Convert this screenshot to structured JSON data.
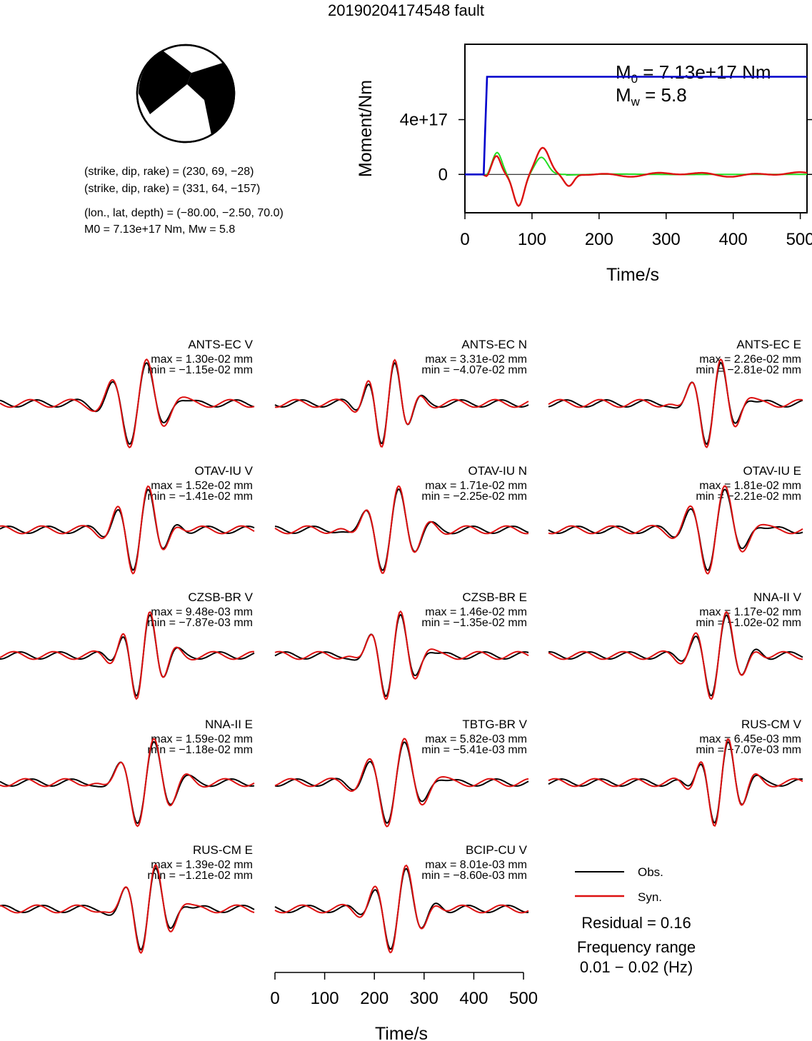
{
  "title": "20190204174548 fault",
  "mechanism": {
    "plane1": "(strike, dip, rake) = (230, 69, −28)",
    "plane2": "(strike, dip, rake) = (331, 64, −157)",
    "location": "(lon., lat, depth) = (−80.00, −2.50, 70.0)",
    "moment": "M0 = 7.13e+17 Nm, Mw = 5.8"
  },
  "colors": {
    "obs": "#000000",
    "syn": "#dd1111",
    "moment": "#0000cc",
    "green": "#22dd22"
  },
  "stf_chart": {
    "type": "line",
    "xlabel": "Time/s",
    "ylabel": "Moment/Nm",
    "xlim": [
      0,
      510
    ],
    "ylim": [
      -2.8e+17,
      9.5e+17
    ],
    "x_ticks": [
      "0",
      "100",
      "200",
      "300",
      "400",
      "500"
    ],
    "y_ticks": [
      "0",
      "4e+17"
    ],
    "m0_label": "M0 = 7.13e+17 Nm",
    "mw_label": "Mw = 5.8",
    "cumulative_moment": {
      "x": [
        0,
        28,
        30,
        33,
        510
      ],
      "y": [
        0,
        0,
        3e+17,
        7.13e+17,
        7.13e+17
      ]
    }
  },
  "waveforms": [
    {
      "station": "ANTS-EC V",
      "max": "max = 1.30e-02 mm",
      "min": "min = −1.15e-02 mm"
    },
    {
      "station": "ANTS-EC N",
      "max": "max = 3.31e-02 mm",
      "min": "min = −4.07e-02 mm"
    },
    {
      "station": "ANTS-EC E",
      "max": "max = 2.26e-02 mm",
      "min": "min = −2.81e-02 mm"
    },
    {
      "station": "OTAV-IU V",
      "max": "max = 1.52e-02 mm",
      "min": "min = −1.41e-02 mm"
    },
    {
      "station": "OTAV-IU N",
      "max": "max = 1.71e-02 mm",
      "min": "min = −2.25e-02 mm"
    },
    {
      "station": "OTAV-IU E",
      "max": "max = 1.81e-02 mm",
      "min": "min = −2.21e-02 mm"
    },
    {
      "station": "CZSB-BR V",
      "max": "max = 9.48e-03 mm",
      "min": "min = −7.87e-03 mm"
    },
    {
      "station": "CZSB-BR E",
      "max": "max = 1.46e-02 mm",
      "min": "min = −1.35e-02 mm"
    },
    {
      "station": "NNA-II V",
      "max": "max = 1.17e-02 mm",
      "min": "min = −1.02e-02 mm"
    },
    {
      "station": "NNA-II E",
      "max": "max = 1.59e-02 mm",
      "min": "min = −1.18e-02 mm"
    },
    {
      "station": "TBTG-BR V",
      "max": "max = 5.82e-03 mm",
      "min": "min = −5.41e-03 mm"
    },
    {
      "station": "RUS-CM V",
      "max": "max = 6.45e-03 mm",
      "min": "min = −7.07e-03 mm"
    },
    {
      "station": "RUS-CM E",
      "max": "max = 1.39e-02 mm",
      "min": "min = −1.21e-02 mm"
    },
    {
      "station": "BCIP-CU V",
      "max": "max = 8.01e-03 mm",
      "min": "min = −8.60e-03 mm"
    }
  ],
  "waveform_axis": {
    "xlabel": "Time/s",
    "xlim": [
      0,
      510
    ],
    "x_ticks": [
      "0",
      "100",
      "200",
      "300",
      "400",
      "500"
    ]
  },
  "legend": {
    "obs": "Obs.",
    "syn": "Syn."
  },
  "residual": "Residual = 0.16",
  "frequency_title": "Frequency range",
  "frequency_value": "0.01 − 0.02 (Hz)"
}
